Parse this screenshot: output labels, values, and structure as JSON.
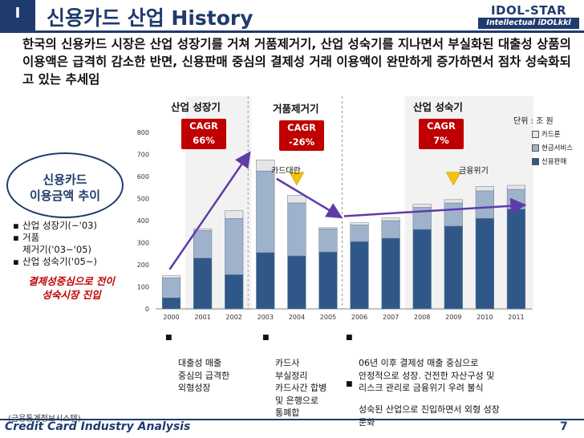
{
  "header": {
    "section_number": "I",
    "title": "신용카드 산업 History",
    "logo_main": "IDOL-STAR",
    "logo_sub": "Intellectual iDOLkkl"
  },
  "summary": "한국의 신용카드 시장은 산업 성장기를 거쳐 거품제거기, 산업 성숙기를 지나면서 부실화된 대출성 상품의 이용액은 급격히 감소한 반면, 신용판매 중심의 결제성 거래 이용액이 완만하게 증가하면서 점차 성숙화되고 있는 추세임",
  "left_panel": {
    "title_line1": "신용카드",
    "title_line2": "이용금액 추이",
    "bullets": [
      "산업 성장기(~'03)",
      "거품\n제거기('03~'05)",
      "산업 성숙기('05~)"
    ],
    "note_line1": "결제성중심으로 전이",
    "note_line2": "성숙시장 진입"
  },
  "chart_data": {
    "type": "bar",
    "stacked": true,
    "categories": [
      "2000",
      "2001",
      "2002",
      "2003",
      "2004",
      "2005",
      "2006",
      "2007",
      "2008",
      "2009",
      "2010",
      "2011"
    ],
    "series": [
      {
        "name": "신용판매",
        "color": "#2f5889",
        "values": [
          50,
          230,
          155,
          255,
          240,
          258,
          305,
          320,
          360,
          375,
          410,
          452
        ]
      },
      {
        "name": "현금서비스",
        "color": "#9fb2cc",
        "values": [
          90,
          125,
          255,
          370,
          240,
          105,
          75,
          80,
          100,
          105,
          125,
          90
        ]
      },
      {
        "name": "카드론",
        "color": "#e6e6e6",
        "values": [
          10,
          8,
          35,
          50,
          35,
          5,
          10,
          12,
          15,
          15,
          20,
          18
        ]
      }
    ],
    "ylim": [
      0,
      800
    ],
    "yticks": [
      "0",
      "100",
      "200",
      "300",
      "400",
      "500",
      "600",
      "700",
      "800"
    ],
    "unit_label": "단위 : 조 원",
    "phases": [
      {
        "label": "산업 성장기",
        "cagr_title": "CAGR",
        "cagr": "66%"
      },
      {
        "label": "거품제거기",
        "cagr_title": "CAGR",
        "cagr": "-26%"
      },
      {
        "label": "산업 성숙기",
        "cagr_title": "CAGR",
        "cagr": "7%"
      }
    ],
    "annotations": [
      "카드대란",
      "금융위기"
    ],
    "accent_colors": {
      "phase_highlight": "#f2f2f2",
      "arrow": "#5f3ba8",
      "marker": "#f4c20d",
      "cagr_box": "#c00000"
    }
  },
  "descriptions": [
    "대출성 매출\n중심의 급격한\n외형성장",
    "카드사\n부실정리\n카드사간 합병\n및 은행으로\n통폐합",
    "06년 이후 결제성 매출 중심으로\n안정적으로 성장. 건전한 자산구성 및\n리스크 관리로 금융위기 우려 불식",
    "성숙된 산업으로 진입하면서 외형 성장\n둔화"
  ],
  "footer": {
    "source": "(금융통계정보시스템)",
    "title": "Credit Card Industry Analysis",
    "page_number": "7"
  }
}
